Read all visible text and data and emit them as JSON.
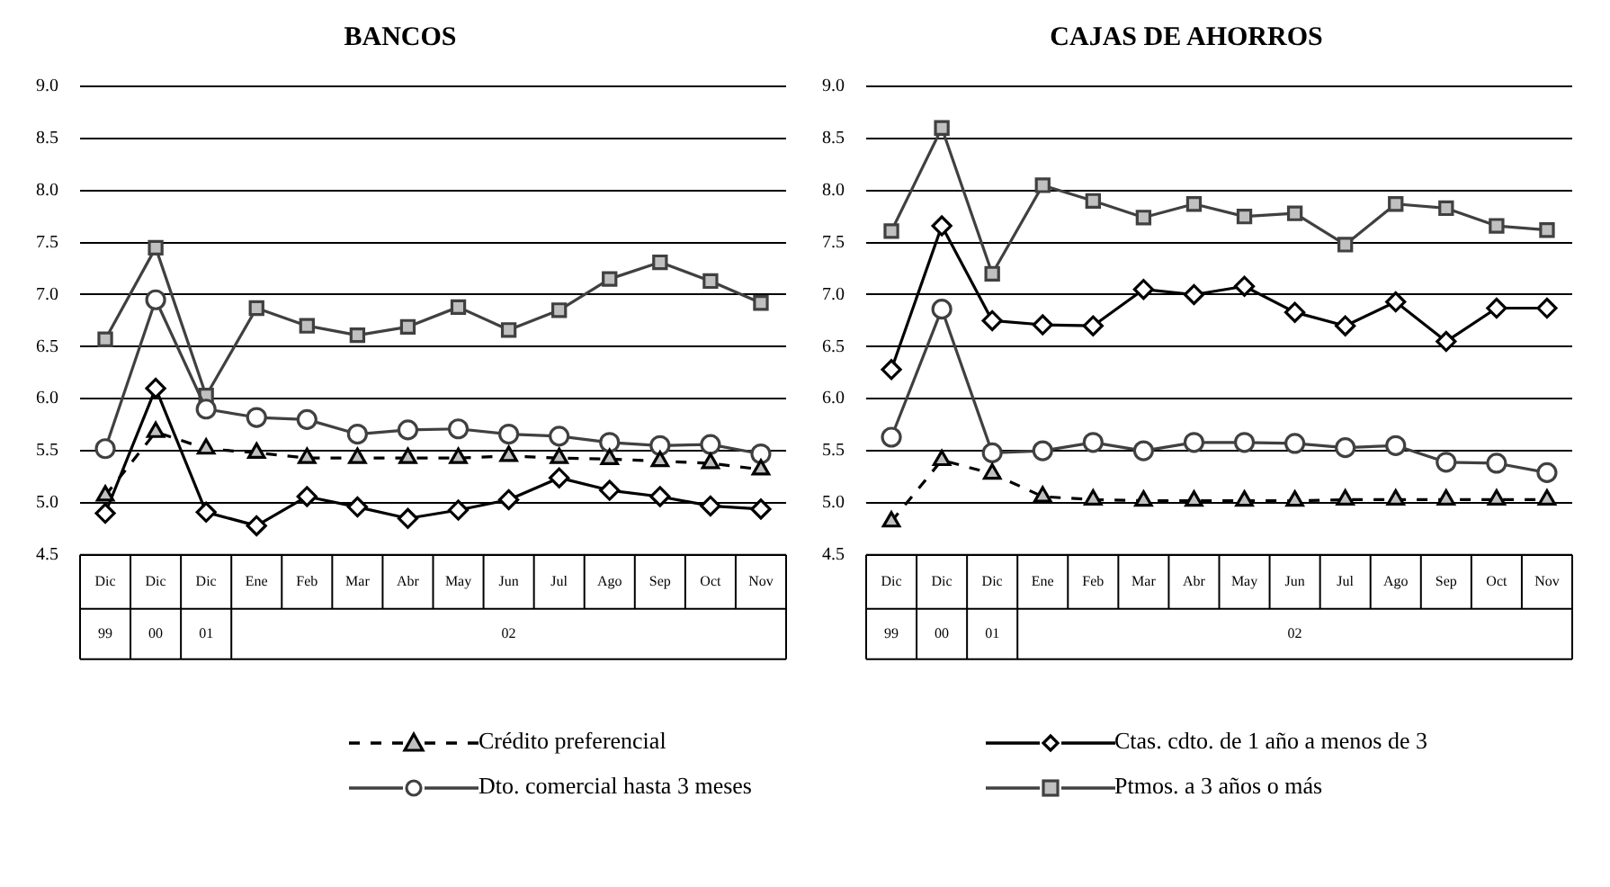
{
  "chart_data": [
    {
      "type": "line",
      "title": "BANCOS",
      "categories": [
        "Dic",
        "Dic",
        "Dic",
        "Ene",
        "Feb",
        "Mar",
        "Abr",
        "May",
        "Jun",
        "Jul",
        "Ago",
        "Sep",
        "Oct",
        "Nov"
      ],
      "annotations": [
        "99",
        "00",
        "01",
        "02"
      ],
      "ylim": [
        4.5,
        9.0
      ],
      "yticks": [
        {
          "value": 4.5,
          "label": "4.5"
        },
        {
          "value": 5,
          "label": "5.0"
        },
        {
          "value": 5.5,
          "label": "5.5"
        },
        {
          "value": 6,
          "label": "6.0"
        },
        {
          "value": 6.5,
          "label": "6.5"
        },
        {
          "value": 7,
          "label": "7.0"
        },
        {
          "value": 7.5,
          "label": "7.5"
        },
        {
          "value": 8,
          "label": "8.0"
        },
        {
          "value": 8.5,
          "label": "8.5"
        },
        {
          "value": 9,
          "label": "9.0"
        }
      ],
      "grid": "y",
      "legend": "bottom",
      "series": [
        {
          "name": "Crédito preferencial",
          "color": "#000000",
          "marker": "triangle",
          "line_style": "dashed",
          "values": [
            5.07,
            5.68,
            5.52,
            5.48,
            5.43,
            5.43,
            5.43,
            5.43,
            5.45,
            5.43,
            5.42,
            5.4,
            5.38,
            5.32
          ]
        },
        {
          "name": "Dto. comercial hasta 3 meses",
          "color": "#404040",
          "marker": "circle",
          "line_style": "solid",
          "values": [
            5.52,
            6.95,
            5.9,
            5.82,
            5.8,
            5.66,
            5.7,
            5.71,
            5.66,
            5.64,
            5.58,
            5.55,
            5.56,
            5.47
          ]
        },
        {
          "name": "Ctas. cdto. de 1 año a menos de 3",
          "color": "#000000",
          "marker": "diamond",
          "line_style": "solid",
          "values": [
            4.9,
            6.1,
            4.91,
            4.78,
            5.06,
            4.96,
            4.85,
            4.93,
            5.03,
            5.24,
            5.12,
            5.06,
            4.97,
            4.94
          ]
        },
        {
          "name": "Ptmos. a 3 años o más",
          "color": "#404040",
          "marker": "square",
          "line_style": "solid",
          "values": [
            6.57,
            7.45,
            6.03,
            6.87,
            6.7,
            6.61,
            6.69,
            6.88,
            6.66,
            6.85,
            7.15,
            7.31,
            7.13,
            6.92
          ]
        }
      ]
    },
    {
      "type": "line",
      "title": "CAJAS DE AHORROS",
      "categories": [
        "Dic",
        "Dic",
        "Dic",
        "Ene",
        "Feb",
        "Mar",
        "Abr",
        "May",
        "Jun",
        "Jul",
        "Ago",
        "Sep",
        "Oct",
        "Nov"
      ],
      "annotations": [
        "99",
        "00",
        "01",
        "02"
      ],
      "ylim": [
        4.5,
        9.0
      ],
      "yticks": [
        {
          "value": 4.5,
          "label": "4.5"
        },
        {
          "value": 5,
          "label": "5.0"
        },
        {
          "value": 5.5,
          "label": "5.5"
        },
        {
          "value": 6,
          "label": "6.0"
        },
        {
          "value": 6.5,
          "label": "6.5"
        },
        {
          "value": 7,
          "label": "7.0"
        },
        {
          "value": 7.5,
          "label": "7.5"
        },
        {
          "value": 8,
          "label": "8.0"
        },
        {
          "value": 8.5,
          "label": "8.5"
        },
        {
          "value": 9,
          "label": "9.0"
        }
      ],
      "grid": "y",
      "series": [
        {
          "color": "#000000",
          "marker": "triangle",
          "line_style": "dashed",
          "values": [
            4.82,
            5.41,
            5.28,
            5.06,
            5.03,
            5.02,
            5.02,
            5.02,
            5.02,
            5.03,
            5.03,
            5.03,
            5.03,
            5.03
          ]
        },
        {
          "color": "#404040",
          "marker": "circle",
          "line_style": "solid",
          "values": [
            5.63,
            6.86,
            5.48,
            5.5,
            5.58,
            5.5,
            5.58,
            5.58,
            5.57,
            5.53,
            5.55,
            5.39,
            5.38,
            5.29
          ]
        },
        {
          "color": "#000000",
          "marker": "diamond",
          "line_style": "solid",
          "values": [
            6.28,
            7.66,
            6.75,
            6.71,
            6.7,
            7.05,
            7.0,
            7.08,
            6.83,
            6.7,
            6.93,
            6.55,
            6.87,
            6.87
          ]
        },
        {
          "color": "#404040",
          "marker": "square",
          "line_style": "solid",
          "values": [
            7.61,
            8.6,
            7.2,
            8.05,
            7.9,
            7.74,
            7.87,
            7.75,
            7.78,
            7.48,
            7.87,
            7.83,
            7.66,
            7.62
          ]
        }
      ]
    }
  ]
}
